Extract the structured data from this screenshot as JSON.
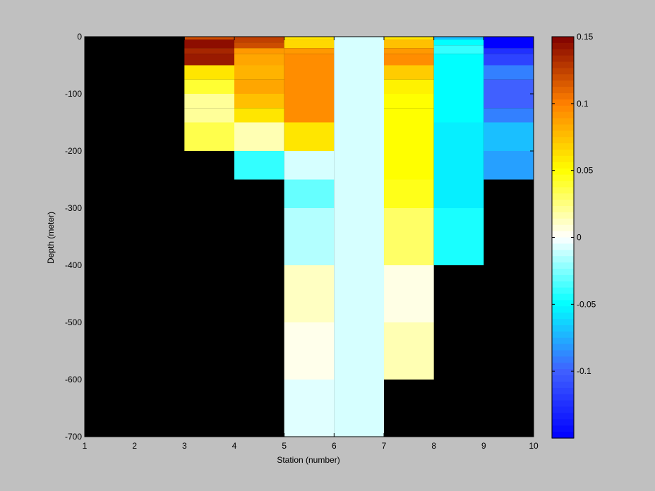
{
  "chart_data": {
    "type": "heatmap",
    "xlabel": "Station (number)",
    "ylabel": "Depth (meter)",
    "xlim": [
      1,
      10
    ],
    "ylim": [
      -700,
      0
    ],
    "xticks": [
      1,
      2,
      3,
      4,
      5,
      6,
      7,
      8,
      9,
      10
    ],
    "yticks": [
      0,
      -100,
      -200,
      -300,
      -400,
      -500,
      -600,
      -700
    ],
    "clim": [
      -0.15,
      0.15
    ],
    "colorbar_ticks": [
      0.15,
      0.1,
      0.05,
      0,
      -0.05,
      -0.1
    ],
    "background_color": "#000000",
    "colormap": [
      "#0000ff",
      "#4060ff",
      "#00ffff",
      "#ffffff",
      "#ffff00",
      "#ff8000",
      "#800000"
    ],
    "columns": [
      {
        "x0": 3,
        "x1": 4,
        "cells": [
          {
            "top": 0,
            "bottom": -5,
            "value": 0.12
          },
          {
            "top": -5,
            "bottom": -20,
            "value": 0.145
          },
          {
            "top": -20,
            "bottom": -30,
            "value": 0.135
          },
          {
            "top": -30,
            "bottom": -50,
            "value": 0.14
          },
          {
            "top": -50,
            "bottom": -75,
            "value": 0.06
          },
          {
            "top": -75,
            "bottom": -100,
            "value": 0.04
          },
          {
            "top": -100,
            "bottom": -125,
            "value": 0.02
          },
          {
            "top": -125,
            "bottom": -150,
            "value": 0.02
          },
          {
            "top": -150,
            "bottom": -200,
            "value": 0.035
          }
        ]
      },
      {
        "x0": 4,
        "x1": 5,
        "cells": [
          {
            "top": 0,
            "bottom": -10,
            "value": 0.125
          },
          {
            "top": -10,
            "bottom": -20,
            "value": 0.12
          },
          {
            "top": -20,
            "bottom": -30,
            "value": 0.09
          },
          {
            "top": -30,
            "bottom": -50,
            "value": 0.085
          },
          {
            "top": -50,
            "bottom": -75,
            "value": 0.08
          },
          {
            "top": -75,
            "bottom": -100,
            "value": 0.085
          },
          {
            "top": -100,
            "bottom": -125,
            "value": 0.075
          },
          {
            "top": -125,
            "bottom": -150,
            "value": 0.06
          },
          {
            "top": -150,
            "bottom": -200,
            "value": 0.015
          },
          {
            "top": -200,
            "bottom": -250,
            "value": -0.04
          }
        ]
      },
      {
        "x0": 5,
        "x1": 6,
        "cells": [
          {
            "top": 0,
            "bottom": -5,
            "value": 0.06
          },
          {
            "top": -5,
            "bottom": -20,
            "value": 0.065
          },
          {
            "top": -20,
            "bottom": -30,
            "value": 0.09
          },
          {
            "top": -30,
            "bottom": -50,
            "value": 0.095
          },
          {
            "top": -50,
            "bottom": -150,
            "value": 0.095
          },
          {
            "top": -150,
            "bottom": -200,
            "value": 0.06
          },
          {
            "top": -200,
            "bottom": -250,
            "value": -0.008
          },
          {
            "top": -250,
            "bottom": -300,
            "value": -0.03
          },
          {
            "top": -300,
            "bottom": -400,
            "value": -0.015
          },
          {
            "top": -400,
            "bottom": -500,
            "value": 0.012
          },
          {
            "top": -500,
            "bottom": -600,
            "value": 0.004
          },
          {
            "top": -600,
            "bottom": -700,
            "value": -0.006
          }
        ]
      },
      {
        "x0": 6,
        "x1": 7,
        "cells": [
          {
            "top": 0,
            "bottom": -700,
            "value": -0.008
          }
        ]
      },
      {
        "x0": 7,
        "x1": 8,
        "cells": [
          {
            "top": 0,
            "bottom": -5,
            "value": 0.06
          },
          {
            "top": -5,
            "bottom": -20,
            "value": 0.075
          },
          {
            "top": -20,
            "bottom": -30,
            "value": 0.09
          },
          {
            "top": -30,
            "bottom": -50,
            "value": 0.095
          },
          {
            "top": -50,
            "bottom": -75,
            "value": 0.07
          },
          {
            "top": -75,
            "bottom": -100,
            "value": 0.055
          },
          {
            "top": -100,
            "bottom": -125,
            "value": 0.05
          },
          {
            "top": -125,
            "bottom": -150,
            "value": 0.05
          },
          {
            "top": -150,
            "bottom": -250,
            "value": 0.05
          },
          {
            "top": -250,
            "bottom": -300,
            "value": 0.045
          },
          {
            "top": -300,
            "bottom": -400,
            "value": 0.03
          },
          {
            "top": -400,
            "bottom": -500,
            "value": 0.005
          },
          {
            "top": -500,
            "bottom": -600,
            "value": 0.015
          }
        ]
      },
      {
        "x0": 8,
        "x1": 9,
        "cells": [
          {
            "top": 0,
            "bottom": -5,
            "value": -0.07
          },
          {
            "top": -5,
            "bottom": -15,
            "value": -0.05
          },
          {
            "top": -15,
            "bottom": -30,
            "value": -0.04
          },
          {
            "top": -30,
            "bottom": -150,
            "value": -0.05
          },
          {
            "top": -150,
            "bottom": -300,
            "value": -0.055
          },
          {
            "top": -300,
            "bottom": -400,
            "value": -0.045
          }
        ]
      },
      {
        "x0": 9,
        "x1": 10,
        "cells": [
          {
            "top": 0,
            "bottom": -20,
            "value": -0.15
          },
          {
            "top": -20,
            "bottom": -30,
            "value": -0.125
          },
          {
            "top": -30,
            "bottom": -50,
            "value": -0.115
          },
          {
            "top": -50,
            "bottom": -75,
            "value": -0.09
          },
          {
            "top": -75,
            "bottom": -100,
            "value": -0.1
          },
          {
            "top": -100,
            "bottom": -125,
            "value": -0.1
          },
          {
            "top": -125,
            "bottom": -150,
            "value": -0.09
          },
          {
            "top": -150,
            "bottom": -200,
            "value": -0.07
          },
          {
            "top": -200,
            "bottom": -250,
            "value": -0.08
          }
        ]
      }
    ]
  }
}
